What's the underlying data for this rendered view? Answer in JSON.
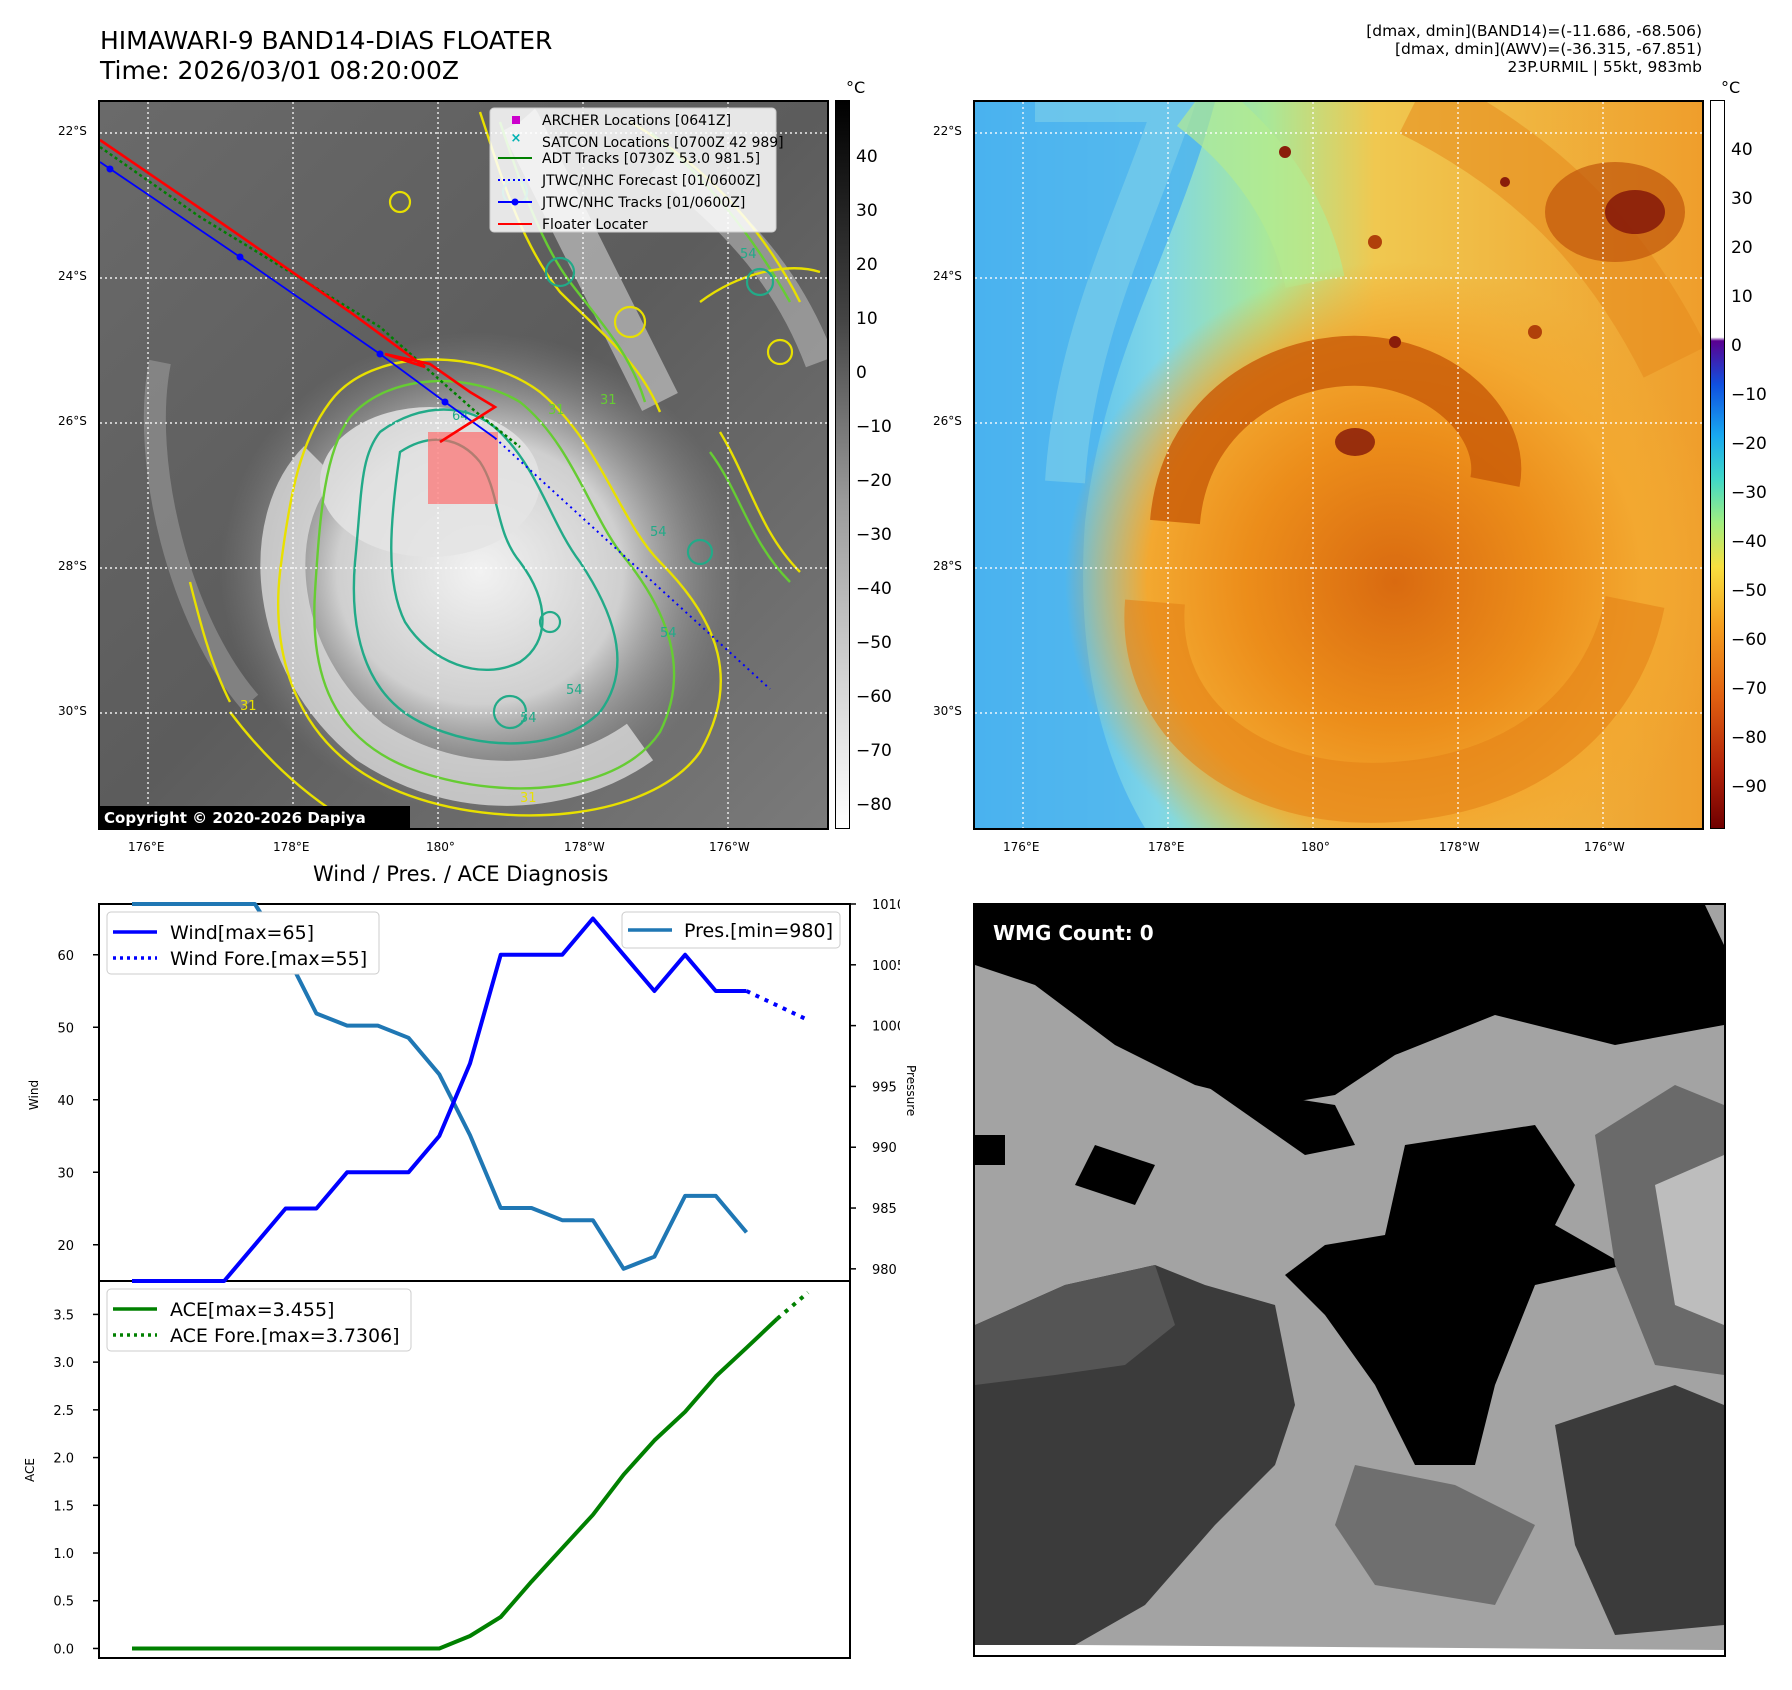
{
  "header": {
    "title": "HIMAWARI-9 BAND14-DIAS FLOATER",
    "time": "Time: 2026/03/01 08:20:00Z",
    "info_lines": [
      "[dmax, dmin](BAND14)=(-11.686, -68.506)",
      "[dmax, dmin](AWV)=(-36.315, -67.851)",
      "23P.URMIL | 55kt, 983mb"
    ]
  },
  "map": {
    "lat_labels": [
      "22°S",
      "24°S",
      "26°S",
      "28°S",
      "30°S"
    ],
    "lon_labels": [
      "176°E",
      "178°E",
      "180°",
      "178°W",
      "176°W"
    ],
    "colorbar_unit": "°C",
    "left_colorbar_ticks": [
      "40",
      "30",
      "20",
      "10",
      "0",
      "−10",
      "−20",
      "−30",
      "−40",
      "−50",
      "−60",
      "−70",
      "−80"
    ],
    "right_colorbar_ticks": [
      "40",
      "30",
      "20",
      "10",
      "0",
      "−10",
      "−20",
      "−30",
      "−40",
      "−50",
      "−60",
      "−70",
      "−80",
      "−90"
    ],
    "contour_labels": [
      "31",
      "54",
      "64",
      "31",
      "54",
      "54",
      "54",
      "31",
      "54",
      "31"
    ],
    "copyright": "Copyright © 2020-2026 Dapiya",
    "legend": [
      {
        "label": "ARCHER Locations [0641Z]",
        "color": "#cc00cc",
        "marker": "square"
      },
      {
        "label": "SATCON Locations [0700Z 42 989]",
        "color": "#00b2b2",
        "marker": "x"
      },
      {
        "label": "ADT Tracks [0730Z 53.0 981.5]",
        "color": "#008000",
        "marker": "line"
      },
      {
        "label": "JTWC/NHC Forecast [01/0600Z]",
        "color": "#0000ff",
        "marker": "dotted"
      },
      {
        "label": "JTWC/NHC Tracks [01/0600Z]",
        "color": "#0000ff",
        "marker": "line-dot"
      },
      {
        "label": "Floater Locater",
        "color": "#ff0000",
        "marker": "line"
      }
    ]
  },
  "wmg": {
    "label": "WMG Count: 0"
  },
  "chart_data": [
    {
      "type": "line",
      "title": "Wind / Pres. / ACE Diagnosis",
      "ylabel": "Wind",
      "y2label": "Pressure",
      "ylim": [
        15,
        67
      ],
      "y2lim": [
        979,
        1010
      ],
      "yticks": [
        "20",
        "30",
        "40",
        "50",
        "60"
      ],
      "y2ticks": [
        "980",
        "985",
        "990",
        "995",
        "1000",
        "1005",
        "1010"
      ],
      "x": [
        0,
        1,
        2,
        3,
        4,
        5,
        6,
        7,
        8,
        9,
        10,
        11,
        12,
        13,
        14,
        15,
        16,
        17,
        18,
        19,
        20,
        21,
        22
      ],
      "series": [
        {
          "name": "Wind[max=65]",
          "color": "#0000ff",
          "style": "solid",
          "axis": "left",
          "values": [
            15,
            15,
            15,
            15,
            20,
            25,
            25,
            30,
            30,
            30,
            35,
            45,
            60,
            60,
            60,
            65,
            60,
            55,
            60,
            55,
            55,
            null,
            null
          ]
        },
        {
          "name": "Wind Fore.[max=55]",
          "color": "#0000ff",
          "style": "dotted",
          "axis": "left",
          "values": [
            null,
            null,
            null,
            null,
            null,
            null,
            null,
            null,
            null,
            null,
            null,
            null,
            null,
            null,
            null,
            null,
            null,
            null,
            null,
            null,
            55,
            53,
            51
          ]
        },
        {
          "name": "Pres.[min=980]",
          "color": "#1f77b4",
          "style": "solid",
          "axis": "right",
          "values": [
            1010,
            1010,
            1010,
            1010,
            1010,
            1006,
            1001,
            1000,
            1000,
            999,
            996,
            991,
            985,
            985,
            984,
            984,
            980,
            981,
            986,
            986,
            983,
            null,
            null
          ]
        }
      ]
    },
    {
      "type": "line",
      "ylabel": "ACE",
      "ylim": [
        -0.1,
        3.85
      ],
      "yticks": [
        "0.0",
        "0.5",
        "1.0",
        "1.5",
        "2.0",
        "2.5",
        "3.0",
        "3.5"
      ],
      "x": [
        0,
        1,
        2,
        3,
        4,
        5,
        6,
        7,
        8,
        9,
        10,
        11,
        12,
        13,
        14,
        15,
        16,
        17,
        18,
        19,
        20,
        21,
        22
      ],
      "series": [
        {
          "name": "ACE[max=3.455]",
          "color": "#008000",
          "style": "solid",
          "values": [
            0,
            0,
            0,
            0,
            0,
            0,
            0,
            0,
            0,
            0,
            0,
            0.13,
            0.33,
            0.7,
            1.05,
            1.4,
            1.82,
            2.18,
            2.48,
            2.85,
            3.15,
            3.455,
            null
          ]
        },
        {
          "name": "ACE Fore.[max=3.7306]",
          "color": "#008000",
          "style": "dotted",
          "values": [
            null,
            null,
            null,
            null,
            null,
            null,
            null,
            null,
            null,
            null,
            null,
            null,
            null,
            null,
            null,
            null,
            null,
            null,
            null,
            null,
            null,
            3.455,
            3.73
          ]
        }
      ]
    }
  ]
}
